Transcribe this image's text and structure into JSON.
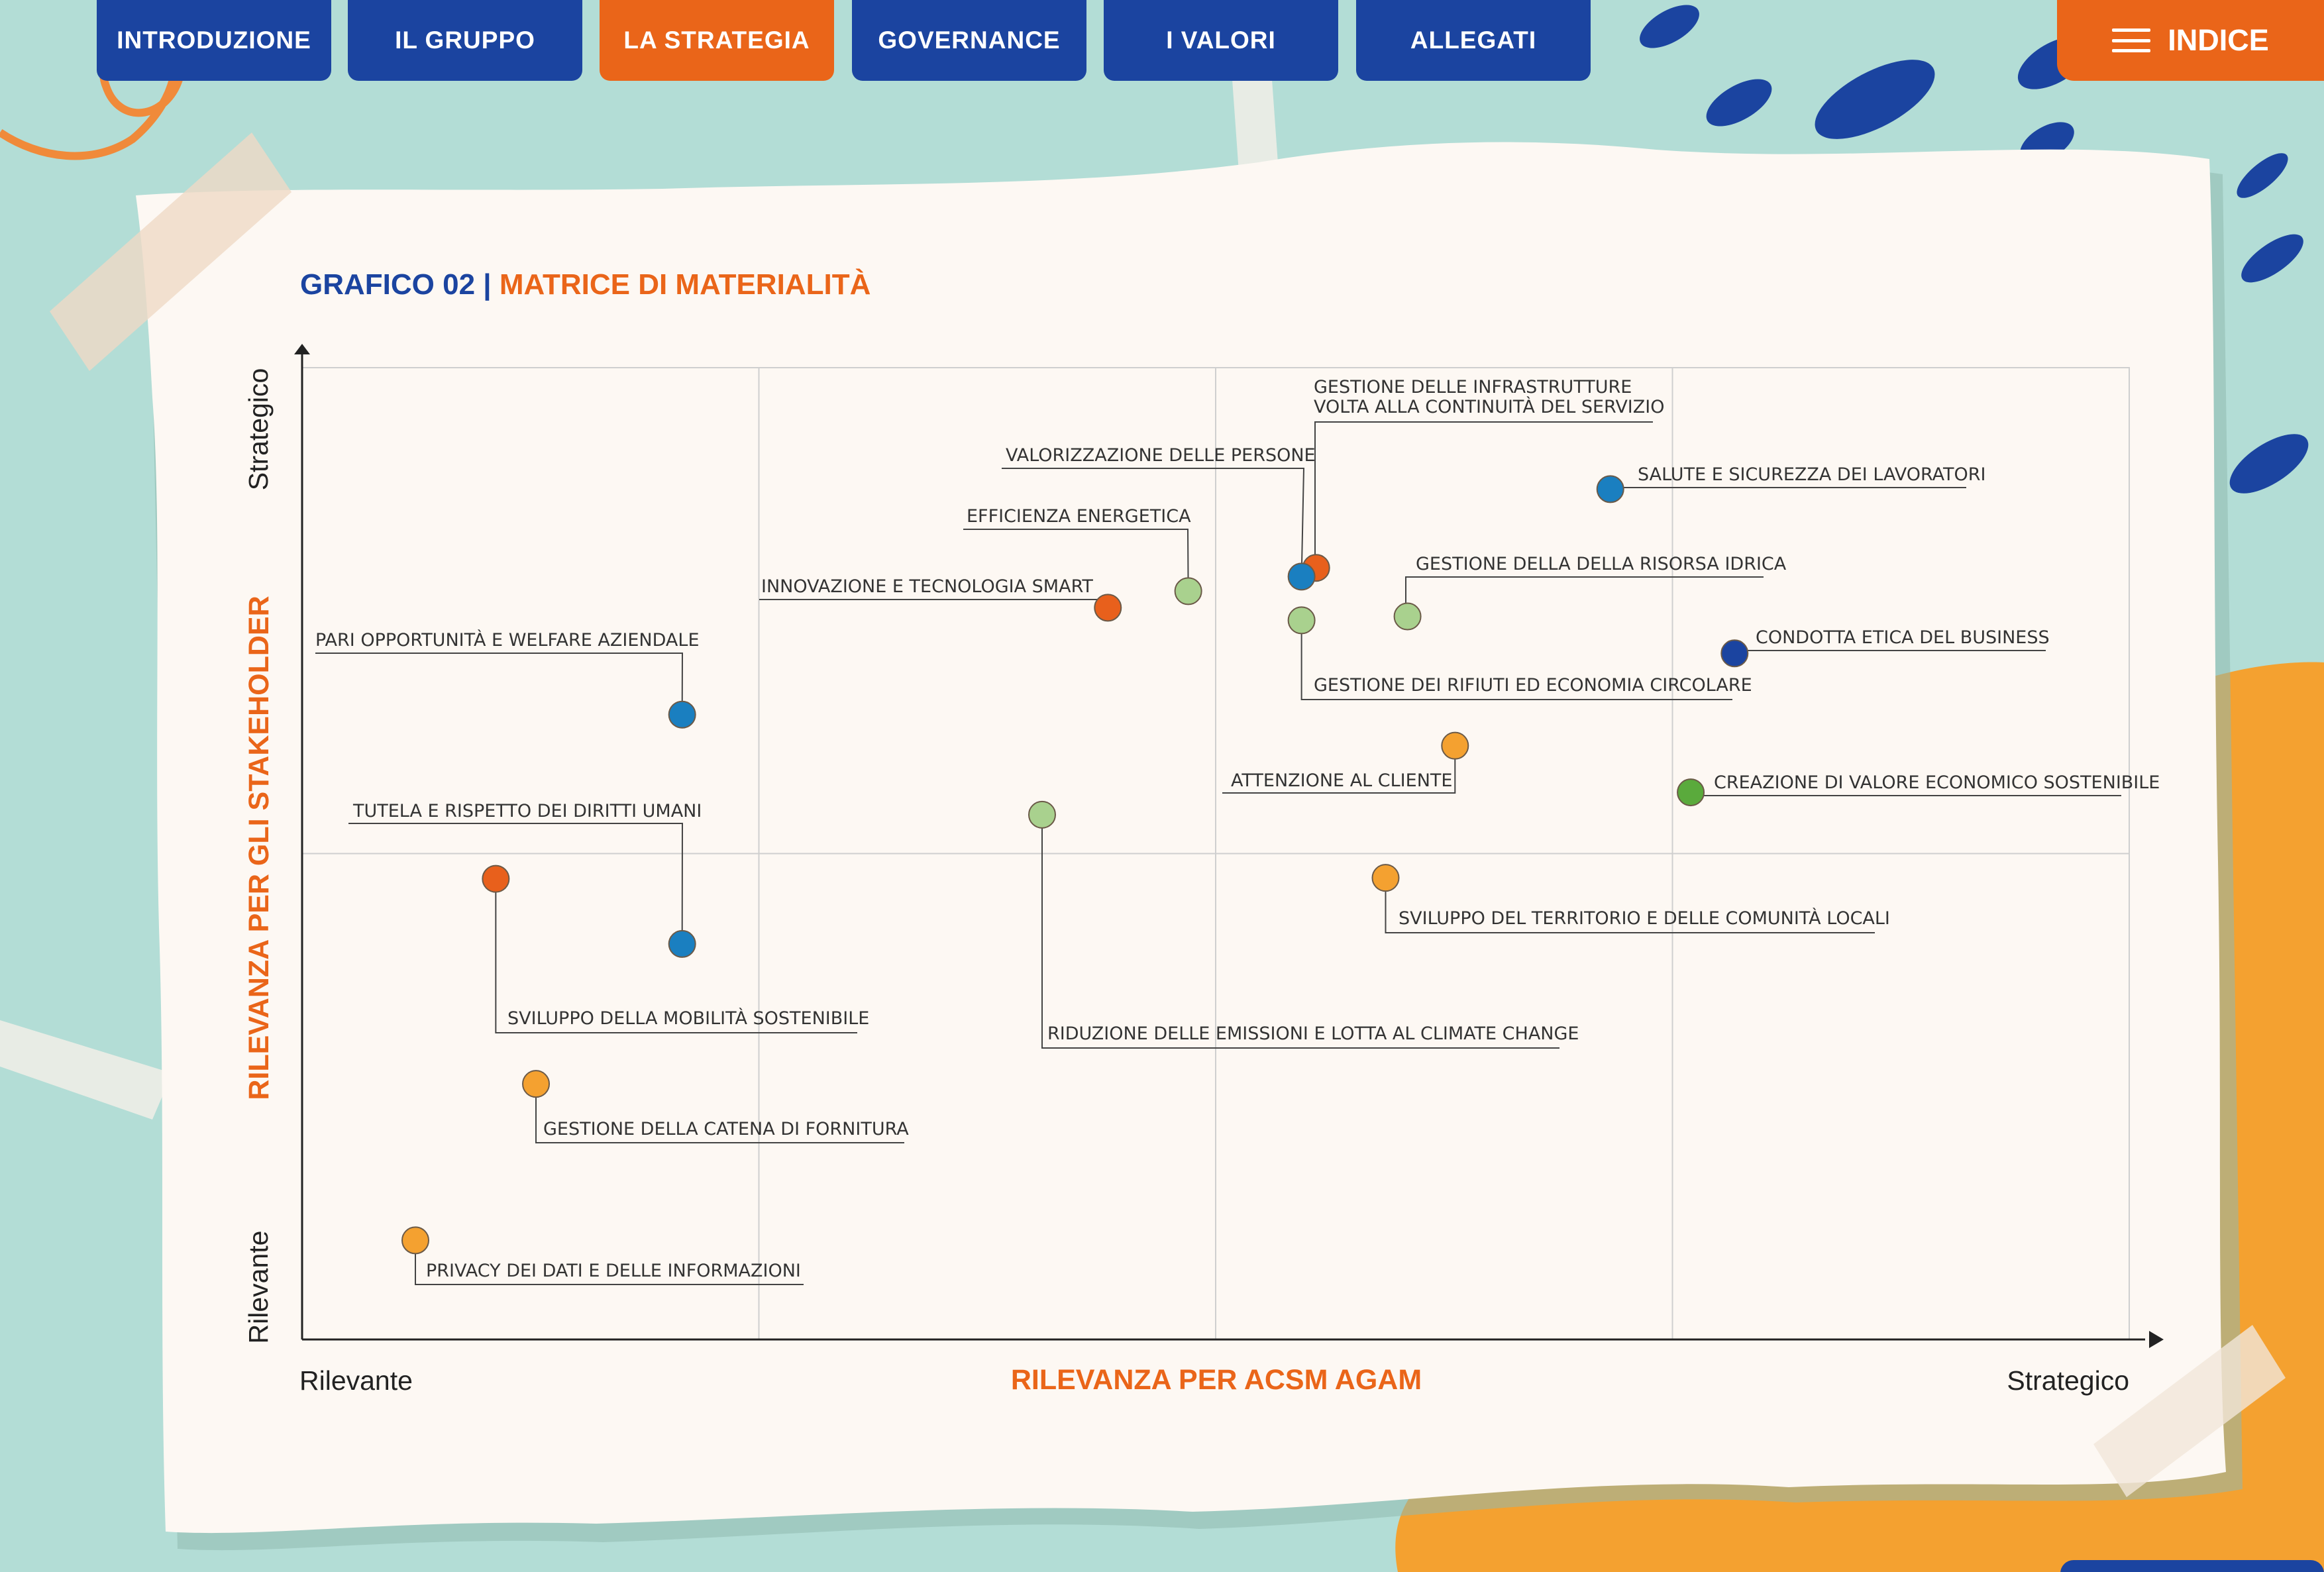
{
  "nav": {
    "tabs": [
      {
        "label": "INTRODUZIONE",
        "active": false
      },
      {
        "label": "IL GRUPPO",
        "active": false
      },
      {
        "label": "LA STRATEGIA",
        "active": true
      },
      {
        "label": "GOVERNANCE",
        "active": false
      },
      {
        "label": "I VALORI",
        "active": false
      },
      {
        "label": "ALLEGATI",
        "active": false
      }
    ],
    "index_label": "INDICE",
    "index_icon": "menu-icon"
  },
  "chart_title": {
    "prefix": "GRAFICO 02 |",
    "title": "MATRICE DI MATERIALITÀ"
  },
  "colors": {
    "primary_blue": "#1b44a0",
    "accent_orange": "#ea6519",
    "background_teal": "#b3ddd6",
    "paper": "#fdf8f3",
    "yellow_orange": "#f4a130"
  },
  "chart_data": {
    "type": "scatter",
    "title": "MATRICE DI MATERIALITÀ",
    "xlabel": "RILEVANZA PER ACSM AGAM",
    "ylabel": "RILEVANZA PER GLI STAKEHOLDER",
    "x_ticks": [
      "Rilevante",
      "Strategico"
    ],
    "y_ticks": [
      "Rilevante",
      "Strategico"
    ],
    "xlim": [
      0,
      100
    ],
    "ylim": [
      0,
      100
    ],
    "grid": true,
    "points": [
      {
        "label": "SALUTE E SICUREZZA DEI LAVORATORI",
        "x": 71.6,
        "y": 87.5,
        "color": "#1a7fc0"
      },
      {
        "label": "GESTIONE DELLE INFRASTRUTTURE VOLTA ALLA CONTINUITÀ DEL SERVIZIO",
        "x": 55.5,
        "y": 79.4,
        "color": "#e8601c"
      },
      {
        "label": "VALORIZZAZIONE DELLE PERSONE",
        "x": 54.7,
        "y": 78.5,
        "color": "#1a7fc0"
      },
      {
        "label": "EFFICIENZA ENERGETICA",
        "x": 48.5,
        "y": 77.0,
        "color": "#a9d18e"
      },
      {
        "label": "INNOVAZIONE E TECNOLOGIA SMART",
        "x": 44.1,
        "y": 75.3,
        "color": "#e8601c"
      },
      {
        "label": "GESTIONE DELLA DELLA RISORSA IDRICA",
        "x": 60.5,
        "y": 74.4,
        "color": "#a9d18e"
      },
      {
        "label": "GESTIONE DEI RIFIUTI ED ECONOMIA CIRCOLARE",
        "x": 54.7,
        "y": 74.0,
        "color": "#a9d18e"
      },
      {
        "label": "CONDOTTA ETICA DEL BUSINESS",
        "x": 78.4,
        "y": 70.6,
        "color": "#1b44a0"
      },
      {
        "label": "PARI OPPORTUNITÀ E WELFARE AZIENDALE",
        "x": 20.8,
        "y": 64.3,
        "color": "#1a7fc0"
      },
      {
        "label": "ATTENZIONE AL CLIENTE",
        "x": 63.1,
        "y": 61.1,
        "color": "#f4a130"
      },
      {
        "label": "CREAZIONE DI VALORE ECONOMICO SOSTENIBILE",
        "x": 76.0,
        "y": 56.3,
        "color": "#5aaa3c"
      },
      {
        "label": "RIDUZIONE DELLE EMISSIONI E LOTTA AL CLIMATE CHANGE",
        "x": 40.5,
        "y": 54.0,
        "color": "#a9d18e"
      },
      {
        "label": "SVILUPPO DEL TERRITORIO E DELLE COMUNITÀ LOCALI",
        "x": 59.3,
        "y": 47.5,
        "color": "#f4a130"
      },
      {
        "label": "SVILUPPO DELLA MOBILITÀ SOSTENIBILE",
        "x": 10.6,
        "y": 47.4,
        "color": "#e8601c"
      },
      {
        "label": "TUTELA E RISPETTO DEI DIRITTI UMANI",
        "x": 20.8,
        "y": 40.7,
        "color": "#1a7fc0"
      },
      {
        "label": "GESTIONE DELLA CATENA DI FORNITURA",
        "x": 12.8,
        "y": 26.3,
        "color": "#f4a130"
      },
      {
        "label": "PRIVACY DEI DATI E DELLE INFORMAZIONI",
        "x": 6.2,
        "y": 10.2,
        "color": "#f4a130"
      }
    ]
  }
}
